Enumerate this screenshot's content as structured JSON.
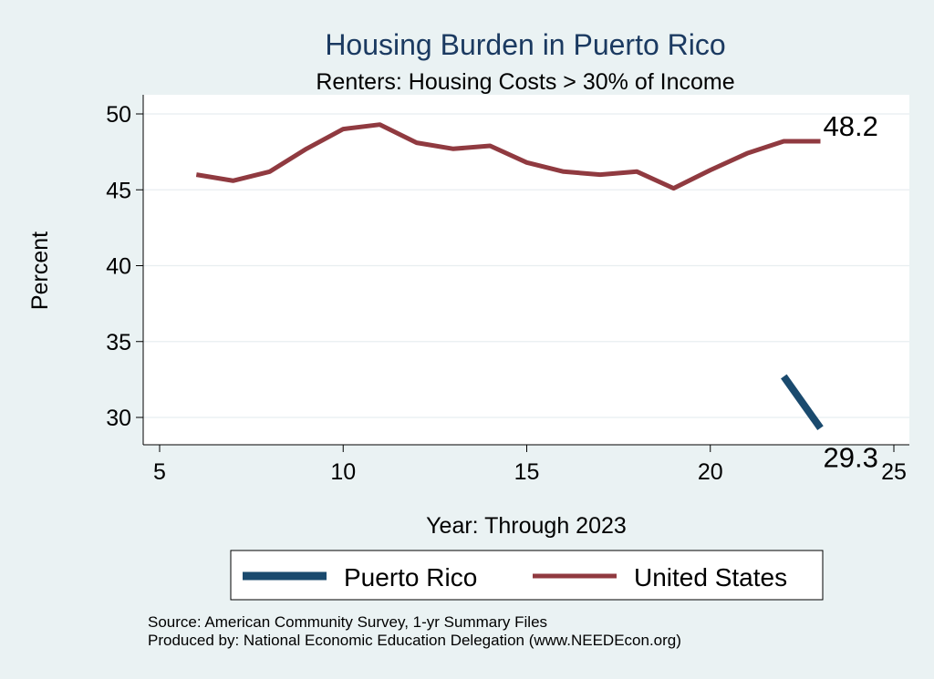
{
  "chart_data": {
    "type": "line",
    "title": "Housing Burden in Puerto Rico",
    "subtitle": "Renters: Housing Costs > 30% of Income",
    "xlabel": "Year: Through 2023",
    "ylabel": "Percent",
    "xlim": [
      5,
      25
    ],
    "ylim": [
      28,
      51
    ],
    "x_ticks": [
      5,
      10,
      15,
      20,
      25
    ],
    "y_ticks": [
      30,
      35,
      40,
      45,
      50
    ],
    "grid": true,
    "legend_position": "bottom",
    "series": [
      {
        "name": "Puerto Rico",
        "color": "#1a4a6e",
        "x": [
          22,
          23
        ],
        "values": [
          32.7,
          29.3
        ],
        "end_label": "29.3"
      },
      {
        "name": "United States",
        "color": "#903a40",
        "x": [
          6,
          7,
          8,
          9,
          10,
          11,
          12,
          13,
          14,
          15,
          16,
          17,
          18,
          19,
          20,
          21,
          22,
          23
        ],
        "values": [
          46.0,
          45.6,
          46.2,
          47.7,
          49.0,
          49.3,
          48.1,
          47.7,
          47.9,
          46.8,
          46.2,
          46.0,
          46.2,
          45.1,
          46.3,
          47.4,
          48.2,
          48.2
        ],
        "end_label": "48.2"
      }
    ],
    "notes": [
      "Source: American Community Survey, 1-yr Summary Files",
      "Produced by: National Economic Education Delegation (www.NEEDEcon.org)"
    ]
  }
}
